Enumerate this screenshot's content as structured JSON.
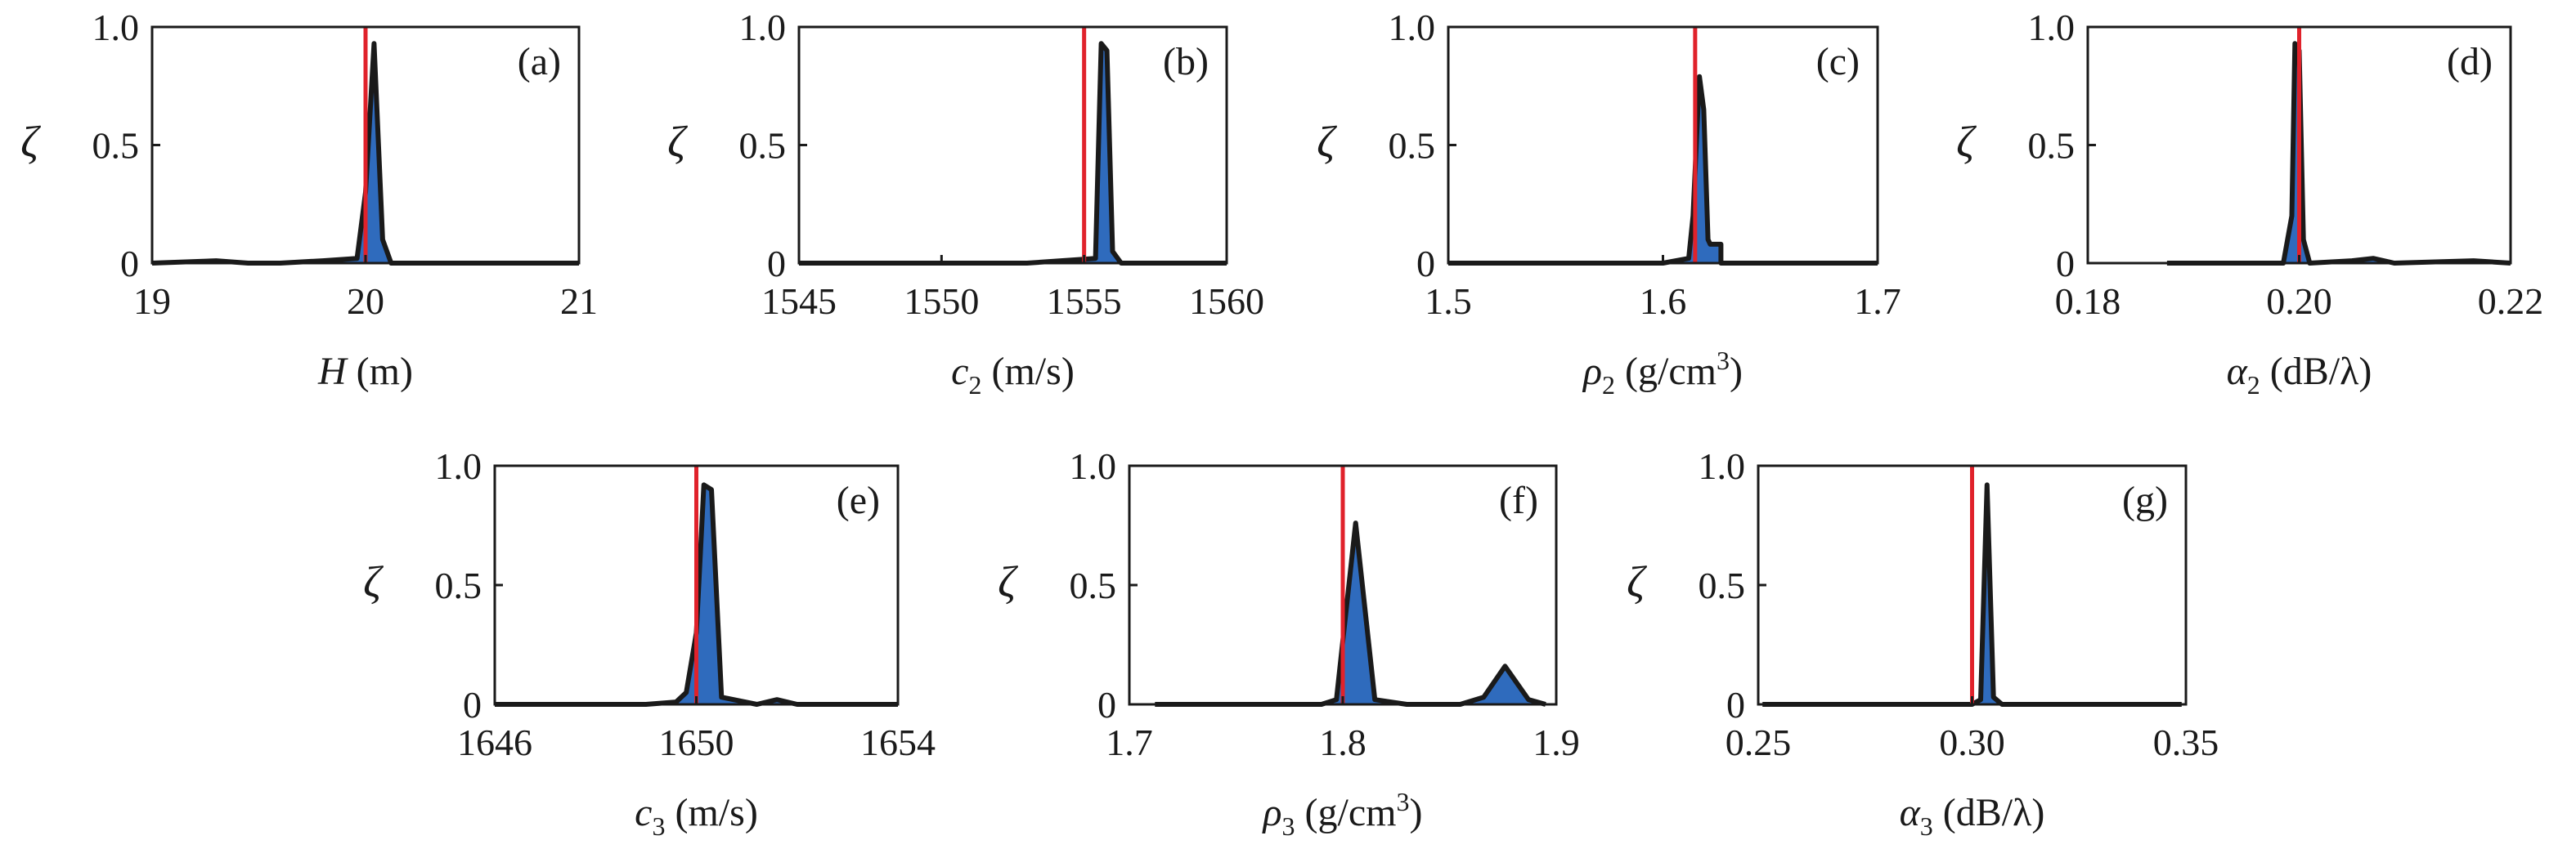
{
  "figure": {
    "colors": {
      "reference_line": "#e0222b",
      "fill": "#2f6bbd",
      "outline": "#1a1a1a",
      "frame": "#1a1a1a"
    }
  },
  "chart_data": [
    {
      "type": "area",
      "panel": "(a)",
      "xlabel": {
        "symbol": "H",
        "italic": true,
        "sub": "",
        "sup": "",
        "rest": " (m)"
      },
      "ylabel": "ζ",
      "xlim": [
        19,
        21
      ],
      "ylim": [
        0,
        1
      ],
      "xticks": [
        19,
        20,
        21
      ],
      "xtick_labels": [
        "19",
        "20",
        "21"
      ],
      "yticks": [
        0,
        0.5,
        1.0
      ],
      "ytick_labels": [
        "0",
        "0.5",
        "1.0"
      ],
      "reference_value": 20.0,
      "series": [
        {
          "x": [
            19.0,
            19.3,
            19.45,
            19.6,
            19.8,
            19.96,
            20.0,
            20.04,
            20.08,
            20.12,
            20.2,
            20.5,
            20.8,
            21.0
          ],
          "values": [
            0.0,
            0.01,
            0.0,
            0.0,
            0.01,
            0.02,
            0.3,
            0.93,
            0.1,
            0.0,
            0.0,
            0.0,
            0.0,
            0.0
          ]
        }
      ]
    },
    {
      "type": "area",
      "panel": "(b)",
      "xlabel": {
        "symbol": "c",
        "italic": true,
        "sub": "2",
        "sup": "",
        "rest": " (m/s)"
      },
      "ylabel": "ζ",
      "xlim": [
        1545,
        1560
      ],
      "ylim": [
        0,
        1
      ],
      "xticks": [
        1545,
        1550,
        1555,
        1560
      ],
      "xtick_labels": [
        "1545",
        "1550",
        "1555",
        "1560"
      ],
      "reference_value": 1555.0,
      "series": [
        {
          "x": [
            1545.0,
            1547.0,
            1549.0,
            1551.0,
            1553.0,
            1555.4,
            1555.6,
            1555.8,
            1556.0,
            1556.3,
            1557.5,
            1558.5,
            1560.0
          ],
          "values": [
            0.0,
            0.0,
            0.0,
            0.0,
            0.0,
            0.02,
            0.93,
            0.9,
            0.05,
            0.0,
            0.0,
            0.0,
            0.0
          ]
        }
      ]
    },
    {
      "type": "area",
      "panel": "(c)",
      "xlabel": {
        "symbol": "ρ",
        "italic": true,
        "sub": "2",
        "sup": "",
        "rest": " (g/cm",
        "rest_sup": "3",
        "rest_end": ")"
      },
      "ylabel": "ζ",
      "xlim": [
        1.5,
        1.7
      ],
      "ylim": [
        0,
        1
      ],
      "xticks": [
        1.5,
        1.6,
        1.7
      ],
      "xtick_labels": [
        "1.5",
        "1.6",
        "1.7"
      ],
      "reference_value": 1.615,
      "series": [
        {
          "x": [
            1.5,
            1.55,
            1.6,
            1.612,
            1.614,
            1.617,
            1.619,
            1.621,
            1.622,
            1.627,
            1.627,
            1.7
          ],
          "values": [
            0.0,
            0.0,
            0.0,
            0.02,
            0.2,
            0.79,
            0.65,
            0.1,
            0.08,
            0.08,
            0.0,
            0.0
          ]
        }
      ]
    },
    {
      "type": "area",
      "panel": "(d)",
      "xlabel": {
        "symbol": "α",
        "italic": true,
        "sub": "2",
        "sup": "",
        "rest": " (dB/λ)"
      },
      "ylabel": "ζ",
      "xlim": [
        0.18,
        0.22
      ],
      "ylim": [
        0,
        1
      ],
      "xticks": [
        0.18,
        0.2,
        0.22
      ],
      "xtick_labels": [
        "0.18",
        "0.20",
        "0.22"
      ],
      "reference_value": 0.2,
      "series": [
        {
          "x": [
            0.1875,
            0.195,
            0.1985,
            0.1993,
            0.1996,
            0.2,
            0.2004,
            0.201,
            0.205,
            0.207,
            0.209,
            0.2165,
            0.22
          ],
          "values": [
            0.0,
            0.0,
            0.0,
            0.2,
            0.93,
            0.9,
            0.1,
            0.0,
            0.01,
            0.02,
            0.0,
            0.01,
            0.0
          ]
        }
      ]
    },
    {
      "type": "area",
      "panel": "(e)",
      "xlabel": {
        "symbol": "c",
        "italic": true,
        "sub": "3",
        "sup": "",
        "rest": " (m/s)"
      },
      "ylabel": "ζ",
      "xlim": [
        1646,
        1654
      ],
      "ylim": [
        0,
        1
      ],
      "xticks": [
        1646,
        1650,
        1654
      ],
      "xtick_labels": [
        "1646",
        "1650",
        "1654"
      ],
      "reference_value": 1650.0,
      "series": [
        {
          "x": [
            1646.0,
            1647.5,
            1649.0,
            1649.6,
            1649.8,
            1650.0,
            1650.15,
            1650.3,
            1650.5,
            1651.2,
            1651.6,
            1652.0,
            1654.0
          ],
          "values": [
            0.0,
            0.0,
            0.0,
            0.01,
            0.05,
            0.3,
            0.92,
            0.9,
            0.03,
            0.0,
            0.02,
            0.0,
            0.0
          ]
        }
      ]
    },
    {
      "type": "area",
      "panel": "(f)",
      "xlabel": {
        "symbol": "ρ",
        "italic": true,
        "sub": "3",
        "sup": "",
        "rest": " (g/cm",
        "rest_sup": "3",
        "rest_end": ")"
      },
      "ylabel": "ζ",
      "xlim": [
        1.7,
        1.9
      ],
      "ylim": [
        0,
        1
      ],
      "xticks": [
        1.7,
        1.8,
        1.9
      ],
      "xtick_labels": [
        "1.7",
        "1.8",
        "1.9"
      ],
      "reference_value": 1.8,
      "series": [
        {
          "x": [
            1.712,
            1.75,
            1.79,
            1.797,
            1.806,
            1.815,
            1.83,
            1.855,
            1.866,
            1.876,
            1.887,
            1.895
          ],
          "values": [
            0.0,
            0.0,
            0.0,
            0.02,
            0.76,
            0.02,
            0.0,
            0.0,
            0.03,
            0.16,
            0.02,
            0.0
          ]
        }
      ]
    },
    {
      "type": "area",
      "panel": "(g)",
      "xlabel": {
        "symbol": "α",
        "italic": true,
        "sub": "3",
        "sup": "",
        "rest": " (dB/λ)"
      },
      "ylabel": "ζ",
      "xlim": [
        0.25,
        0.35
      ],
      "ylim": [
        0,
        1
      ],
      "xticks": [
        0.25,
        0.3,
        0.35
      ],
      "xtick_labels": [
        "0.25",
        "0.30",
        "0.35"
      ],
      "reference_value": 0.3,
      "series": [
        {
          "x": [
            0.251,
            0.28,
            0.3,
            0.302,
            0.3035,
            0.305,
            0.307,
            0.325,
            0.349
          ],
          "values": [
            0.0,
            0.0,
            0.0,
            0.02,
            0.92,
            0.03,
            0.0,
            0.0,
            0.0
          ]
        }
      ]
    }
  ]
}
